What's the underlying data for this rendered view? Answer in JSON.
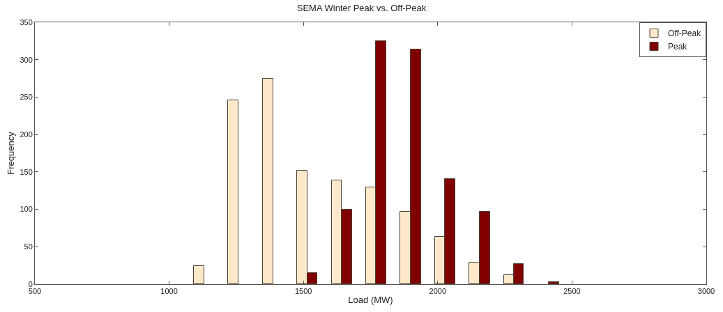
{
  "chart_data": {
    "type": "bar",
    "title": "SEMA Winter Peak vs. Off-Peak",
    "xlabel": "Load (MW)",
    "ylabel": "Frequency",
    "xlim": [
      500,
      3000
    ],
    "xticks": [
      500,
      1000,
      1500,
      2000,
      2500,
      3000
    ],
    "ylim": [
      0,
      350
    ],
    "yticks": [
      0,
      50,
      100,
      150,
      200,
      250,
      300,
      350
    ],
    "legend": "top right",
    "series": [
      {
        "name": "Off-Peak",
        "color": "#fde9c9",
        "x": [
          1111,
          1239,
          1368,
          1496,
          1624,
          1752,
          1880,
          2008,
          2137,
          2265
        ],
        "values": [
          24,
          246,
          275,
          152,
          139,
          129,
          97,
          63,
          29,
          12
        ]
      },
      {
        "name": "Peak",
        "color": "#800000",
        "x": [
          1533,
          1662,
          1789,
          1918,
          2046,
          2175,
          2302,
          2432
        ],
        "values": [
          15,
          100,
          325,
          314,
          141,
          97,
          27,
          3
        ]
      }
    ]
  }
}
